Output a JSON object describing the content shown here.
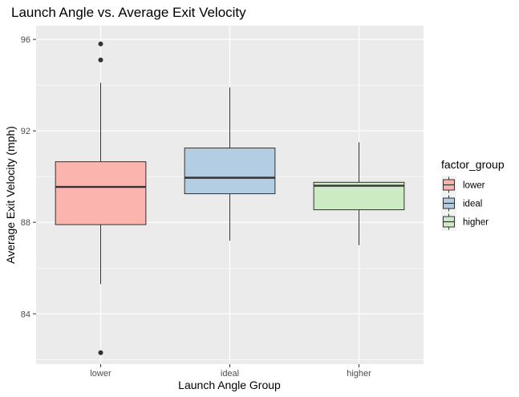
{
  "chart_data": {
    "type": "boxplot",
    "title": "Launch Angle vs. Average Exit Velocity",
    "xlabel": "Launch Angle Group",
    "ylabel": "Average Exit Velocity (mph)",
    "categories": [
      "lower",
      "ideal",
      "higher"
    ],
    "ylim": [
      81.8,
      96.6
    ],
    "yticks": [
      84,
      88,
      92,
      96
    ],
    "grid": true,
    "legend": {
      "title": "factor_group",
      "position": "right",
      "entries": [
        "lower",
        "ideal",
        "higher"
      ]
    },
    "boxes": [
      {
        "category": "lower",
        "whisker_low": 85.3,
        "q1": 87.9,
        "median": 89.55,
        "q3": 90.65,
        "whisker_high": 94.1,
        "outliers": [
          95.8,
          95.1,
          82.3
        ],
        "color": "#FBB4AE"
      },
      {
        "category": "ideal",
        "whisker_low": 87.2,
        "q1": 89.25,
        "median": 89.95,
        "q3": 91.25,
        "whisker_high": 93.9,
        "outliers": [],
        "color": "#B3CDE3"
      },
      {
        "category": "higher",
        "whisker_low": 87.0,
        "q1": 88.55,
        "median": 89.6,
        "q3": 89.75,
        "whisker_high": 91.5,
        "outliers": [],
        "color": "#CCEBC5"
      }
    ]
  }
}
